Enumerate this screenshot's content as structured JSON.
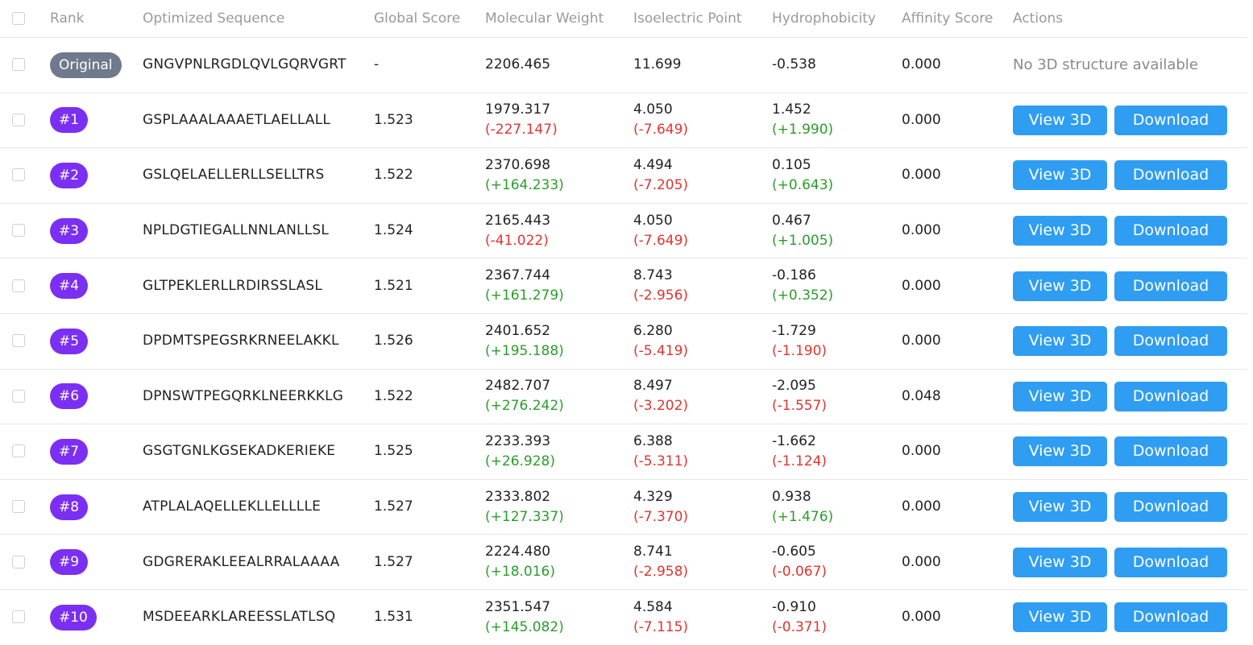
{
  "header": {
    "rank": "Rank",
    "sequence": "Optimized Sequence",
    "global_score": "Global Score",
    "molecular_weight": "Molecular Weight",
    "isoelectric_point": "Isoelectric Point",
    "hydrophobicity": "Hydrophobicity",
    "affinity_score": "Affinity Score",
    "actions": "Actions"
  },
  "buttons": {
    "view_3d": "View 3D",
    "download": "Download"
  },
  "colors": {
    "rank_badge": "#7b2ff2",
    "original_badge": "#6f7a8c",
    "button": "#2f9df2",
    "positive_delta": "#2a9d2a",
    "negative_delta": "#e0342f"
  },
  "rows": [
    {
      "rank": "Original",
      "sequence": "GNGVPNLRGDLQVLGQRVGRT",
      "global_score": "-",
      "mw": "2206.465",
      "mw_delta": "",
      "pi": "11.699",
      "pi_delta": "",
      "hyd": "-0.538",
      "hyd_delta": "",
      "affinity": "0.000",
      "note": "No 3D structure available"
    },
    {
      "rank": "#1",
      "sequence": "GSPLAAALAAAETLAELLALL",
      "global_score": "1.523",
      "mw": "1979.317",
      "mw_delta": "(-227.147)",
      "pi": "4.050",
      "pi_delta": "(-7.649)",
      "hyd": "1.452",
      "hyd_delta": "(+1.990)",
      "affinity": "0.000"
    },
    {
      "rank": "#2",
      "sequence": "GSLQELAELLERLLSELLTRS",
      "global_score": "1.522",
      "mw": "2370.698",
      "mw_delta": "(+164.233)",
      "pi": "4.494",
      "pi_delta": "(-7.205)",
      "hyd": "0.105",
      "hyd_delta": "(+0.643)",
      "affinity": "0.000"
    },
    {
      "rank": "#3",
      "sequence": "NPLDGTIEGALLNNLANLLSL",
      "global_score": "1.524",
      "mw": "2165.443",
      "mw_delta": "(-41.022)",
      "pi": "4.050",
      "pi_delta": "(-7.649)",
      "hyd": "0.467",
      "hyd_delta": "(+1.005)",
      "affinity": "0.000"
    },
    {
      "rank": "#4",
      "sequence": "GLTPEKLERLLRDIRSSLASL",
      "global_score": "1.521",
      "mw": "2367.744",
      "mw_delta": "(+161.279)",
      "pi": "8.743",
      "pi_delta": "(-2.956)",
      "hyd": "-0.186",
      "hyd_delta": "(+0.352)",
      "affinity": "0.000"
    },
    {
      "rank": "#5",
      "sequence": "DPDMTSPEGSRKRNEELAKKL",
      "global_score": "1.526",
      "mw": "2401.652",
      "mw_delta": "(+195.188)",
      "pi": "6.280",
      "pi_delta": "(-5.419)",
      "hyd": "-1.729",
      "hyd_delta": "(-1.190)",
      "affinity": "0.000"
    },
    {
      "rank": "#6",
      "sequence": "DPNSWTPEGQRKLNEERKKLG",
      "global_score": "1.522",
      "mw": "2482.707",
      "mw_delta": "(+276.242)",
      "pi": "8.497",
      "pi_delta": "(-3.202)",
      "hyd": "-2.095",
      "hyd_delta": "(-1.557)",
      "affinity": "0.048"
    },
    {
      "rank": "#7",
      "sequence": "GSGTGNLKGSEKADKERIEKE",
      "global_score": "1.525",
      "mw": "2233.393",
      "mw_delta": "(+26.928)",
      "pi": "6.388",
      "pi_delta": "(-5.311)",
      "hyd": "-1.662",
      "hyd_delta": "(-1.124)",
      "affinity": "0.000"
    },
    {
      "rank": "#8",
      "sequence": "ATPLALAQELLEKLLELLLLE",
      "global_score": "1.527",
      "mw": "2333.802",
      "mw_delta": "(+127.337)",
      "pi": "4.329",
      "pi_delta": "(-7.370)",
      "hyd": "0.938",
      "hyd_delta": "(+1.476)",
      "affinity": "0.000"
    },
    {
      "rank": "#9",
      "sequence": "GDGRERAKLEEALRRALAAAA",
      "global_score": "1.527",
      "mw": "2224.480",
      "mw_delta": "(+18.016)",
      "pi": "8.741",
      "pi_delta": "(-2.958)",
      "hyd": "-0.605",
      "hyd_delta": "(-0.067)",
      "affinity": "0.000"
    },
    {
      "rank": "#10",
      "sequence": "MSDEEARKLAREESSLATLSQ",
      "global_score": "1.531",
      "mw": "2351.547",
      "mw_delta": "(+145.082)",
      "pi": "4.584",
      "pi_delta": "(-7.115)",
      "hyd": "-0.910",
      "hyd_delta": "(-0.371)",
      "affinity": "0.000"
    }
  ]
}
